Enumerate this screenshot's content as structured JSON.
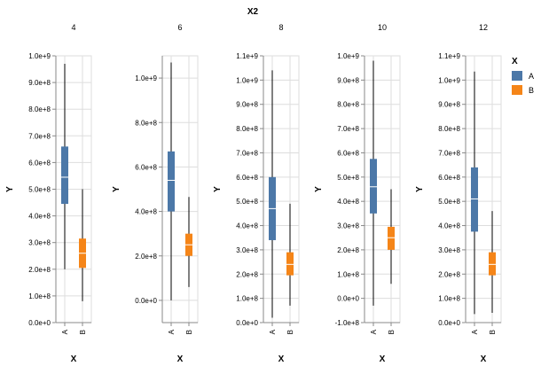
{
  "chart_data": {
    "type": "boxplot",
    "title": "X2",
    "xlabel": "X",
    "ylabel": "Y",
    "categories": [
      "A",
      "B"
    ],
    "legend": {
      "title": "X",
      "placement": "right",
      "entries": [
        {
          "label": "A",
          "color": "#4c78a8"
        },
        {
          "label": "B",
          "color": "#f58518"
        }
      ]
    },
    "grid": true,
    "facets": [
      {
        "label": "4",
        "ylim": [
          0,
          1000000000
        ],
        "yticks": [
          {
            "value": 0,
            "label": "0.0e+0"
          },
          {
            "value": 100000000,
            "label": "1.0e+8"
          },
          {
            "value": 200000000,
            "label": "2.0e+8"
          },
          {
            "value": 300000000,
            "label": "3.0e+8"
          },
          {
            "value": 400000000,
            "label": "4.0e+8"
          },
          {
            "value": 500000000,
            "label": "5.0e+8"
          },
          {
            "value": 600000000,
            "label": "6.0e+8"
          },
          {
            "value": 700000000,
            "label": "7.0e+8"
          },
          {
            "value": 800000000,
            "label": "8.0e+8"
          },
          {
            "value": 900000000,
            "label": "9.0e+8"
          },
          {
            "value": 1000000000,
            "label": "1.0e+9"
          }
        ],
        "boxes": [
          {
            "category": "A",
            "min": 200000000,
            "q1": 445000000,
            "median": 545000000,
            "q3": 660000000,
            "max": 970000000
          },
          {
            "category": "B",
            "min": 80000000,
            "q1": 205000000,
            "median": 260000000,
            "q3": 315000000,
            "max": 500000000
          }
        ]
      },
      {
        "label": "6",
        "ylim": [
          -100000000,
          1100000000
        ],
        "yticks": [
          {
            "value": 0,
            "label": "0.0e+0"
          },
          {
            "value": 200000000,
            "label": "2.0e+8"
          },
          {
            "value": 400000000,
            "label": "4.0e+8"
          },
          {
            "value": 600000000,
            "label": "6.0e+8"
          },
          {
            "value": 800000000,
            "label": "8.0e+8"
          },
          {
            "value": 1000000000,
            "label": "1.0e+9"
          }
        ],
        "boxes": [
          {
            "category": "A",
            "min": 0,
            "q1": 400000000,
            "median": 540000000,
            "q3": 670000000,
            "max": 1070000000
          },
          {
            "category": "B",
            "min": 60000000,
            "q1": 200000000,
            "median": 250000000,
            "q3": 300000000,
            "max": 465000000
          }
        ]
      },
      {
        "label": "8",
        "ylim": [
          0,
          1100000000
        ],
        "yticks": [
          {
            "value": 0,
            "label": "0.0e+0"
          },
          {
            "value": 100000000,
            "label": "1.0e+8"
          },
          {
            "value": 200000000,
            "label": "2.0e+8"
          },
          {
            "value": 300000000,
            "label": "3.0e+8"
          },
          {
            "value": 400000000,
            "label": "4.0e+8"
          },
          {
            "value": 500000000,
            "label": "5.0e+8"
          },
          {
            "value": 600000000,
            "label": "6.0e+8"
          },
          {
            "value": 700000000,
            "label": "7.0e+8"
          },
          {
            "value": 800000000,
            "label": "8.0e+8"
          },
          {
            "value": 900000000,
            "label": "9.0e+8"
          },
          {
            "value": 1000000000,
            "label": "1.0e+9"
          },
          {
            "value": 1100000000,
            "label": "1.1e+9"
          }
        ],
        "boxes": [
          {
            "category": "A",
            "min": 20000000,
            "q1": 340000000,
            "median": 470000000,
            "q3": 600000000,
            "max": 1040000000
          },
          {
            "category": "B",
            "min": 70000000,
            "q1": 195000000,
            "median": 240000000,
            "q3": 290000000,
            "max": 490000000
          }
        ]
      },
      {
        "label": "10",
        "ylim": [
          -100000000,
          1000000000
        ],
        "yticks": [
          {
            "value": -100000000,
            "label": "-1.0e+8"
          },
          {
            "value": 0,
            "label": "0.0e+0"
          },
          {
            "value": 100000000,
            "label": "1.0e+8"
          },
          {
            "value": 200000000,
            "label": "2.0e+8"
          },
          {
            "value": 300000000,
            "label": "3.0e+8"
          },
          {
            "value": 400000000,
            "label": "4.0e+8"
          },
          {
            "value": 500000000,
            "label": "5.0e+8"
          },
          {
            "value": 600000000,
            "label": "6.0e+8"
          },
          {
            "value": 700000000,
            "label": "7.0e+8"
          },
          {
            "value": 800000000,
            "label": "8.0e+8"
          },
          {
            "value": 900000000,
            "label": "9.0e+8"
          },
          {
            "value": 1000000000,
            "label": "1.0e+9"
          }
        ],
        "boxes": [
          {
            "category": "A",
            "min": -30000000,
            "q1": 350000000,
            "median": 460000000,
            "q3": 575000000,
            "max": 980000000
          },
          {
            "category": "B",
            "min": 60000000,
            "q1": 200000000,
            "median": 250000000,
            "q3": 295000000,
            "max": 450000000
          }
        ]
      },
      {
        "label": "12",
        "ylim": [
          0,
          1100000000
        ],
        "yticks": [
          {
            "value": 0,
            "label": "0.0e+0"
          },
          {
            "value": 100000000,
            "label": "1.0e+8"
          },
          {
            "value": 200000000,
            "label": "2.0e+8"
          },
          {
            "value": 300000000,
            "label": "3.0e+8"
          },
          {
            "value": 400000000,
            "label": "4.0e+8"
          },
          {
            "value": 500000000,
            "label": "5.0e+8"
          },
          {
            "value": 600000000,
            "label": "6.0e+8"
          },
          {
            "value": 700000000,
            "label": "7.0e+8"
          },
          {
            "value": 800000000,
            "label": "8.0e+8"
          },
          {
            "value": 900000000,
            "label": "9.0e+8"
          },
          {
            "value": 1000000000,
            "label": "1.0e+9"
          },
          {
            "value": 1100000000,
            "label": "1.1e+9"
          }
        ],
        "boxes": [
          {
            "category": "A",
            "min": 35000000,
            "q1": 375000000,
            "median": 510000000,
            "q3": 640000000,
            "max": 1035000000
          },
          {
            "category": "B",
            "min": 40000000,
            "q1": 195000000,
            "median": 240000000,
            "q3": 290000000,
            "max": 460000000
          }
        ]
      }
    ]
  }
}
